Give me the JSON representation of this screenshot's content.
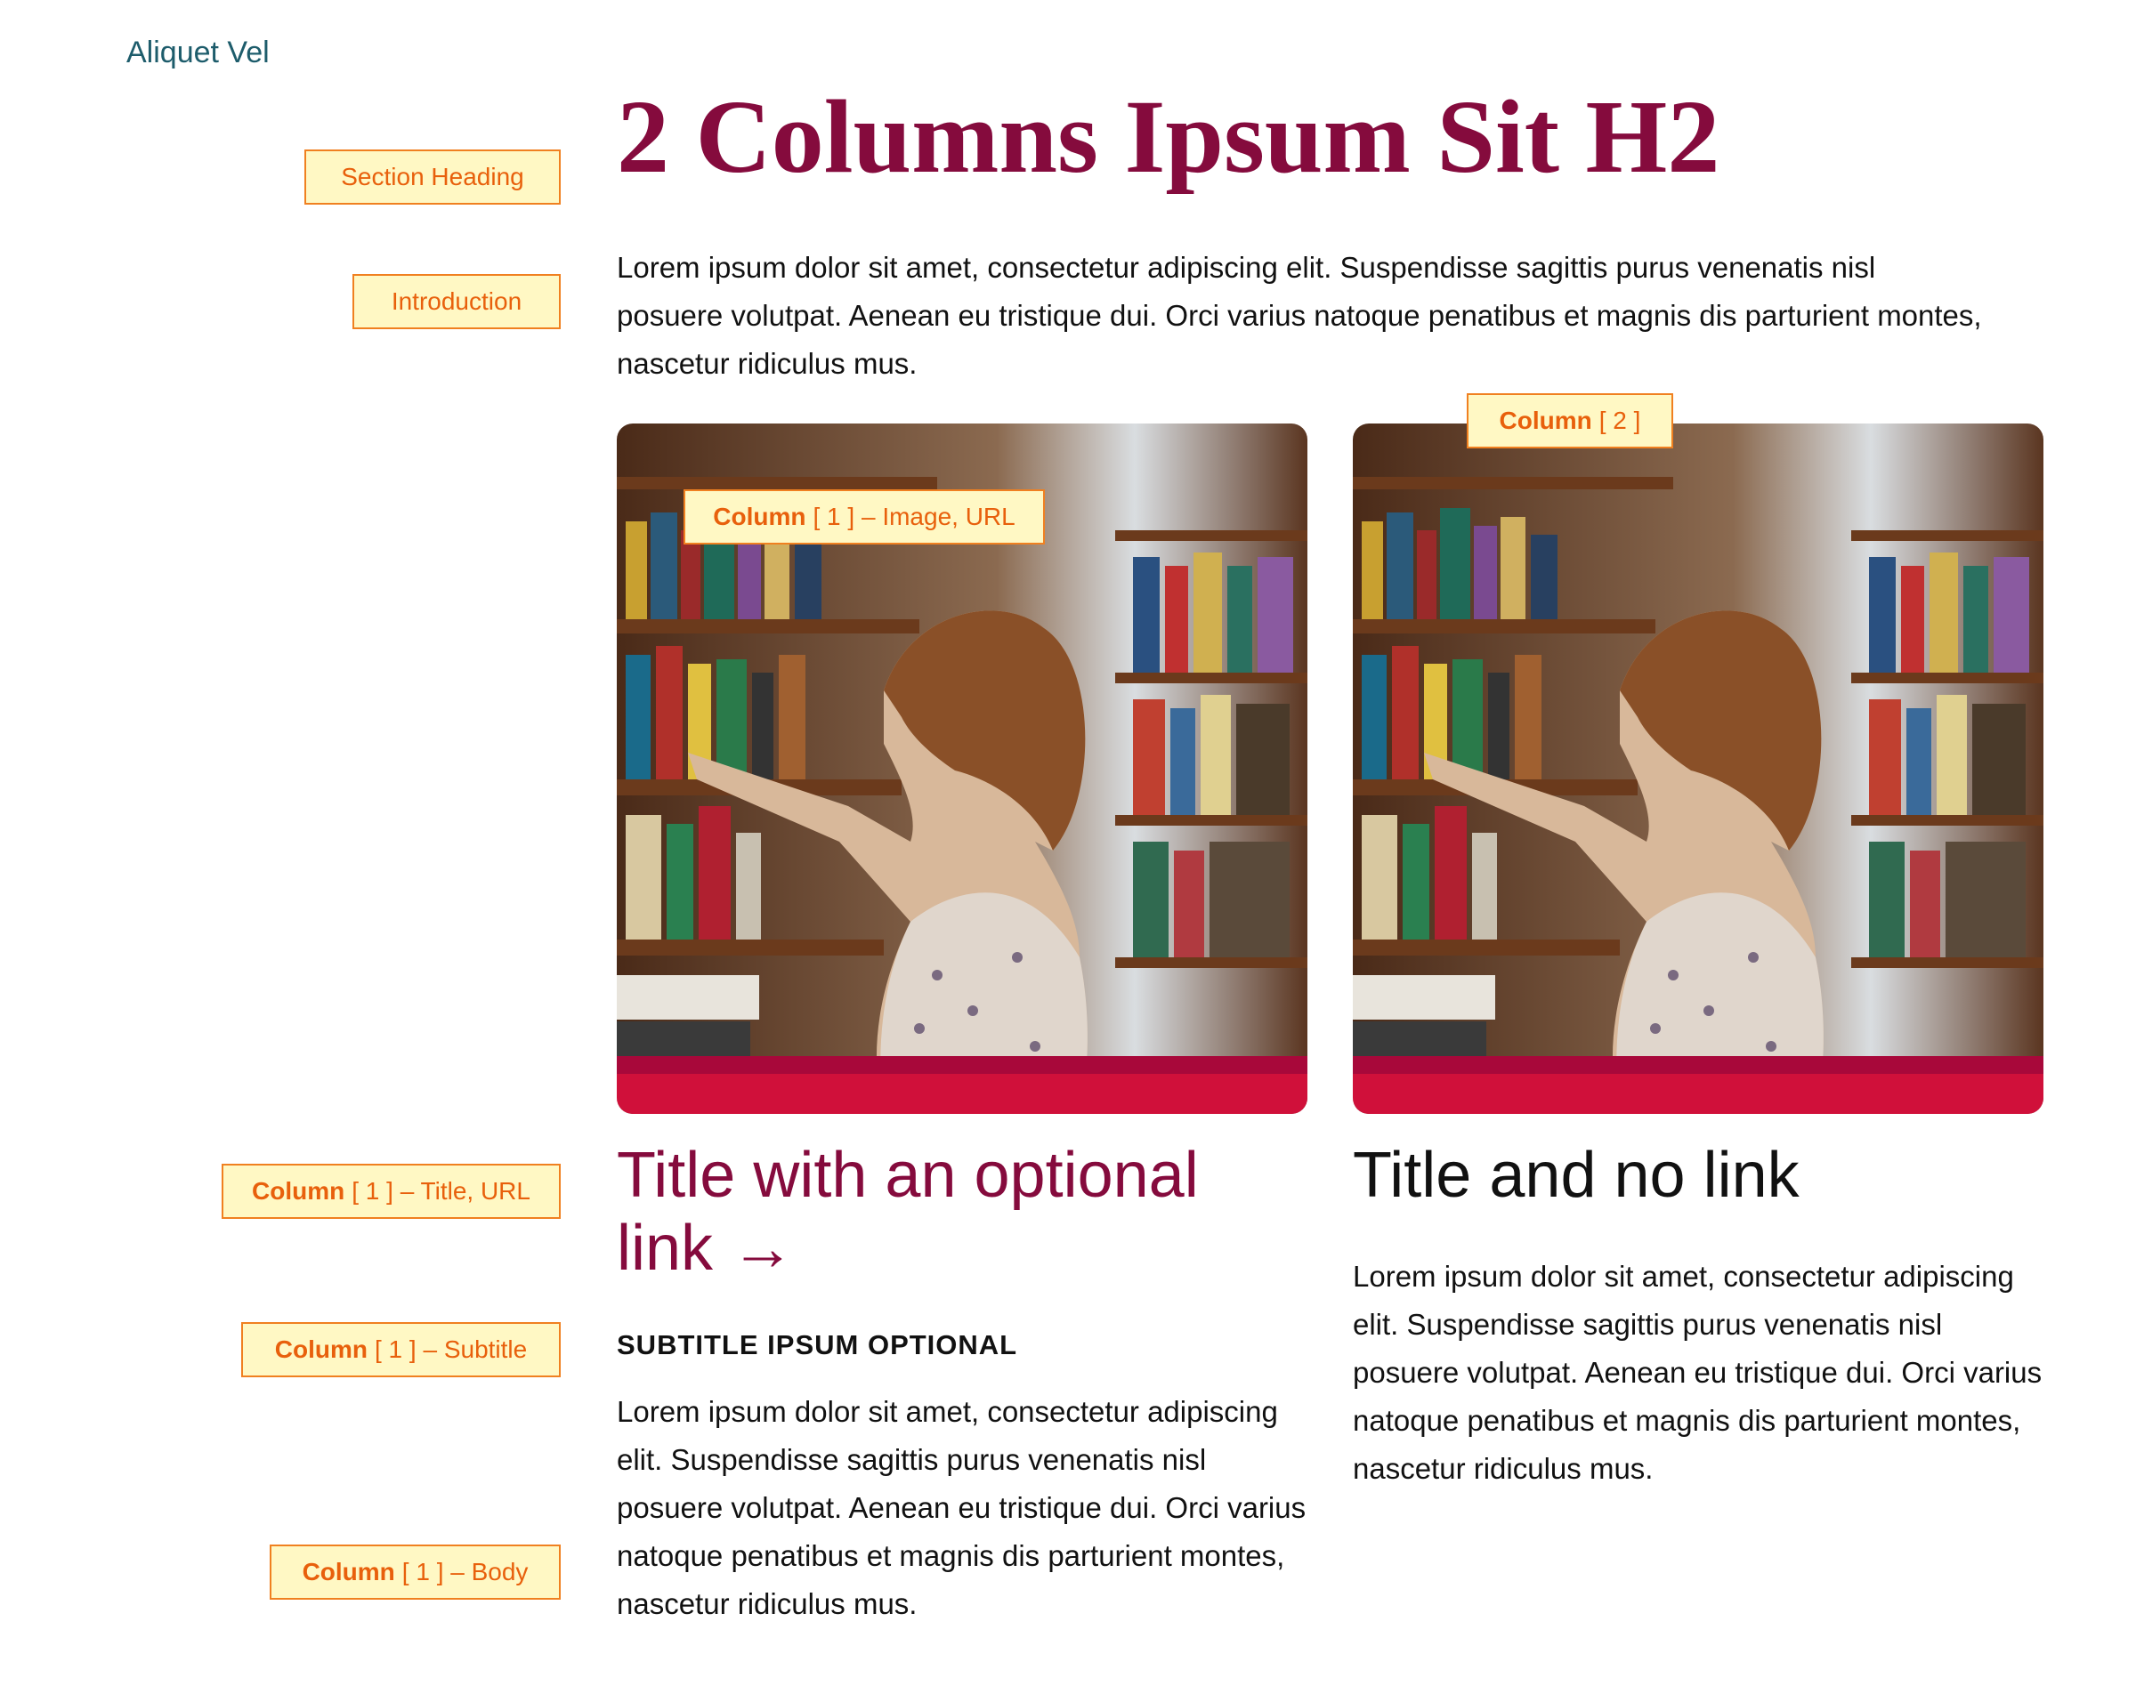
{
  "nav": {
    "link": "Aliquet Vel"
  },
  "section": {
    "heading": "2 Columns Ipsum Sit H2",
    "introduction": "Lorem ipsum dolor sit amet, consectetur adipiscing elit. Suspendisse sagittis purus venenatis nisl posuere volutpat. Aenean eu tristique dui. Orci varius natoque penatibus et magnis dis parturient montes, nascetur ridiculus mus."
  },
  "columns": [
    {
      "title": "Title with an optional link →",
      "subtitle": "SUBTITLE IPSUM OPTIONAL",
      "body": "Lorem ipsum dolor sit amet, consectetur adipiscing elit. Suspendisse sagittis purus venenatis nisl posuere volutpat. Aenean eu tristique dui. Orci varius natoque penatibus et magnis dis parturient montes, nascetur ridiculus mus."
    },
    {
      "title": "Title and no link",
      "body": "Lorem ipsum dolor sit amet, consectetur adipiscing elit. Suspendisse sagittis purus venenatis nisl posuere volutpat. Aenean eu tristique dui. Orci varius natoque penatibus et magnis dis parturient montes, nascetur ridiculus mus."
    }
  ],
  "annotations": [
    {
      "text": "Section Heading"
    },
    {
      "text": "Introduction"
    },
    {
      "bold": "Column",
      "text": "[ 2 ]"
    },
    {
      "bold": "Column",
      "text": "[ 1 ] – Image, URL"
    },
    {
      "bold": "Column",
      "text": "[ 1 ] – Title, URL"
    },
    {
      "bold": "Column",
      "text": "[ 1 ] – Subtitle"
    },
    {
      "bold": "Column",
      "text": "[ 1 ] – Body"
    }
  ]
}
